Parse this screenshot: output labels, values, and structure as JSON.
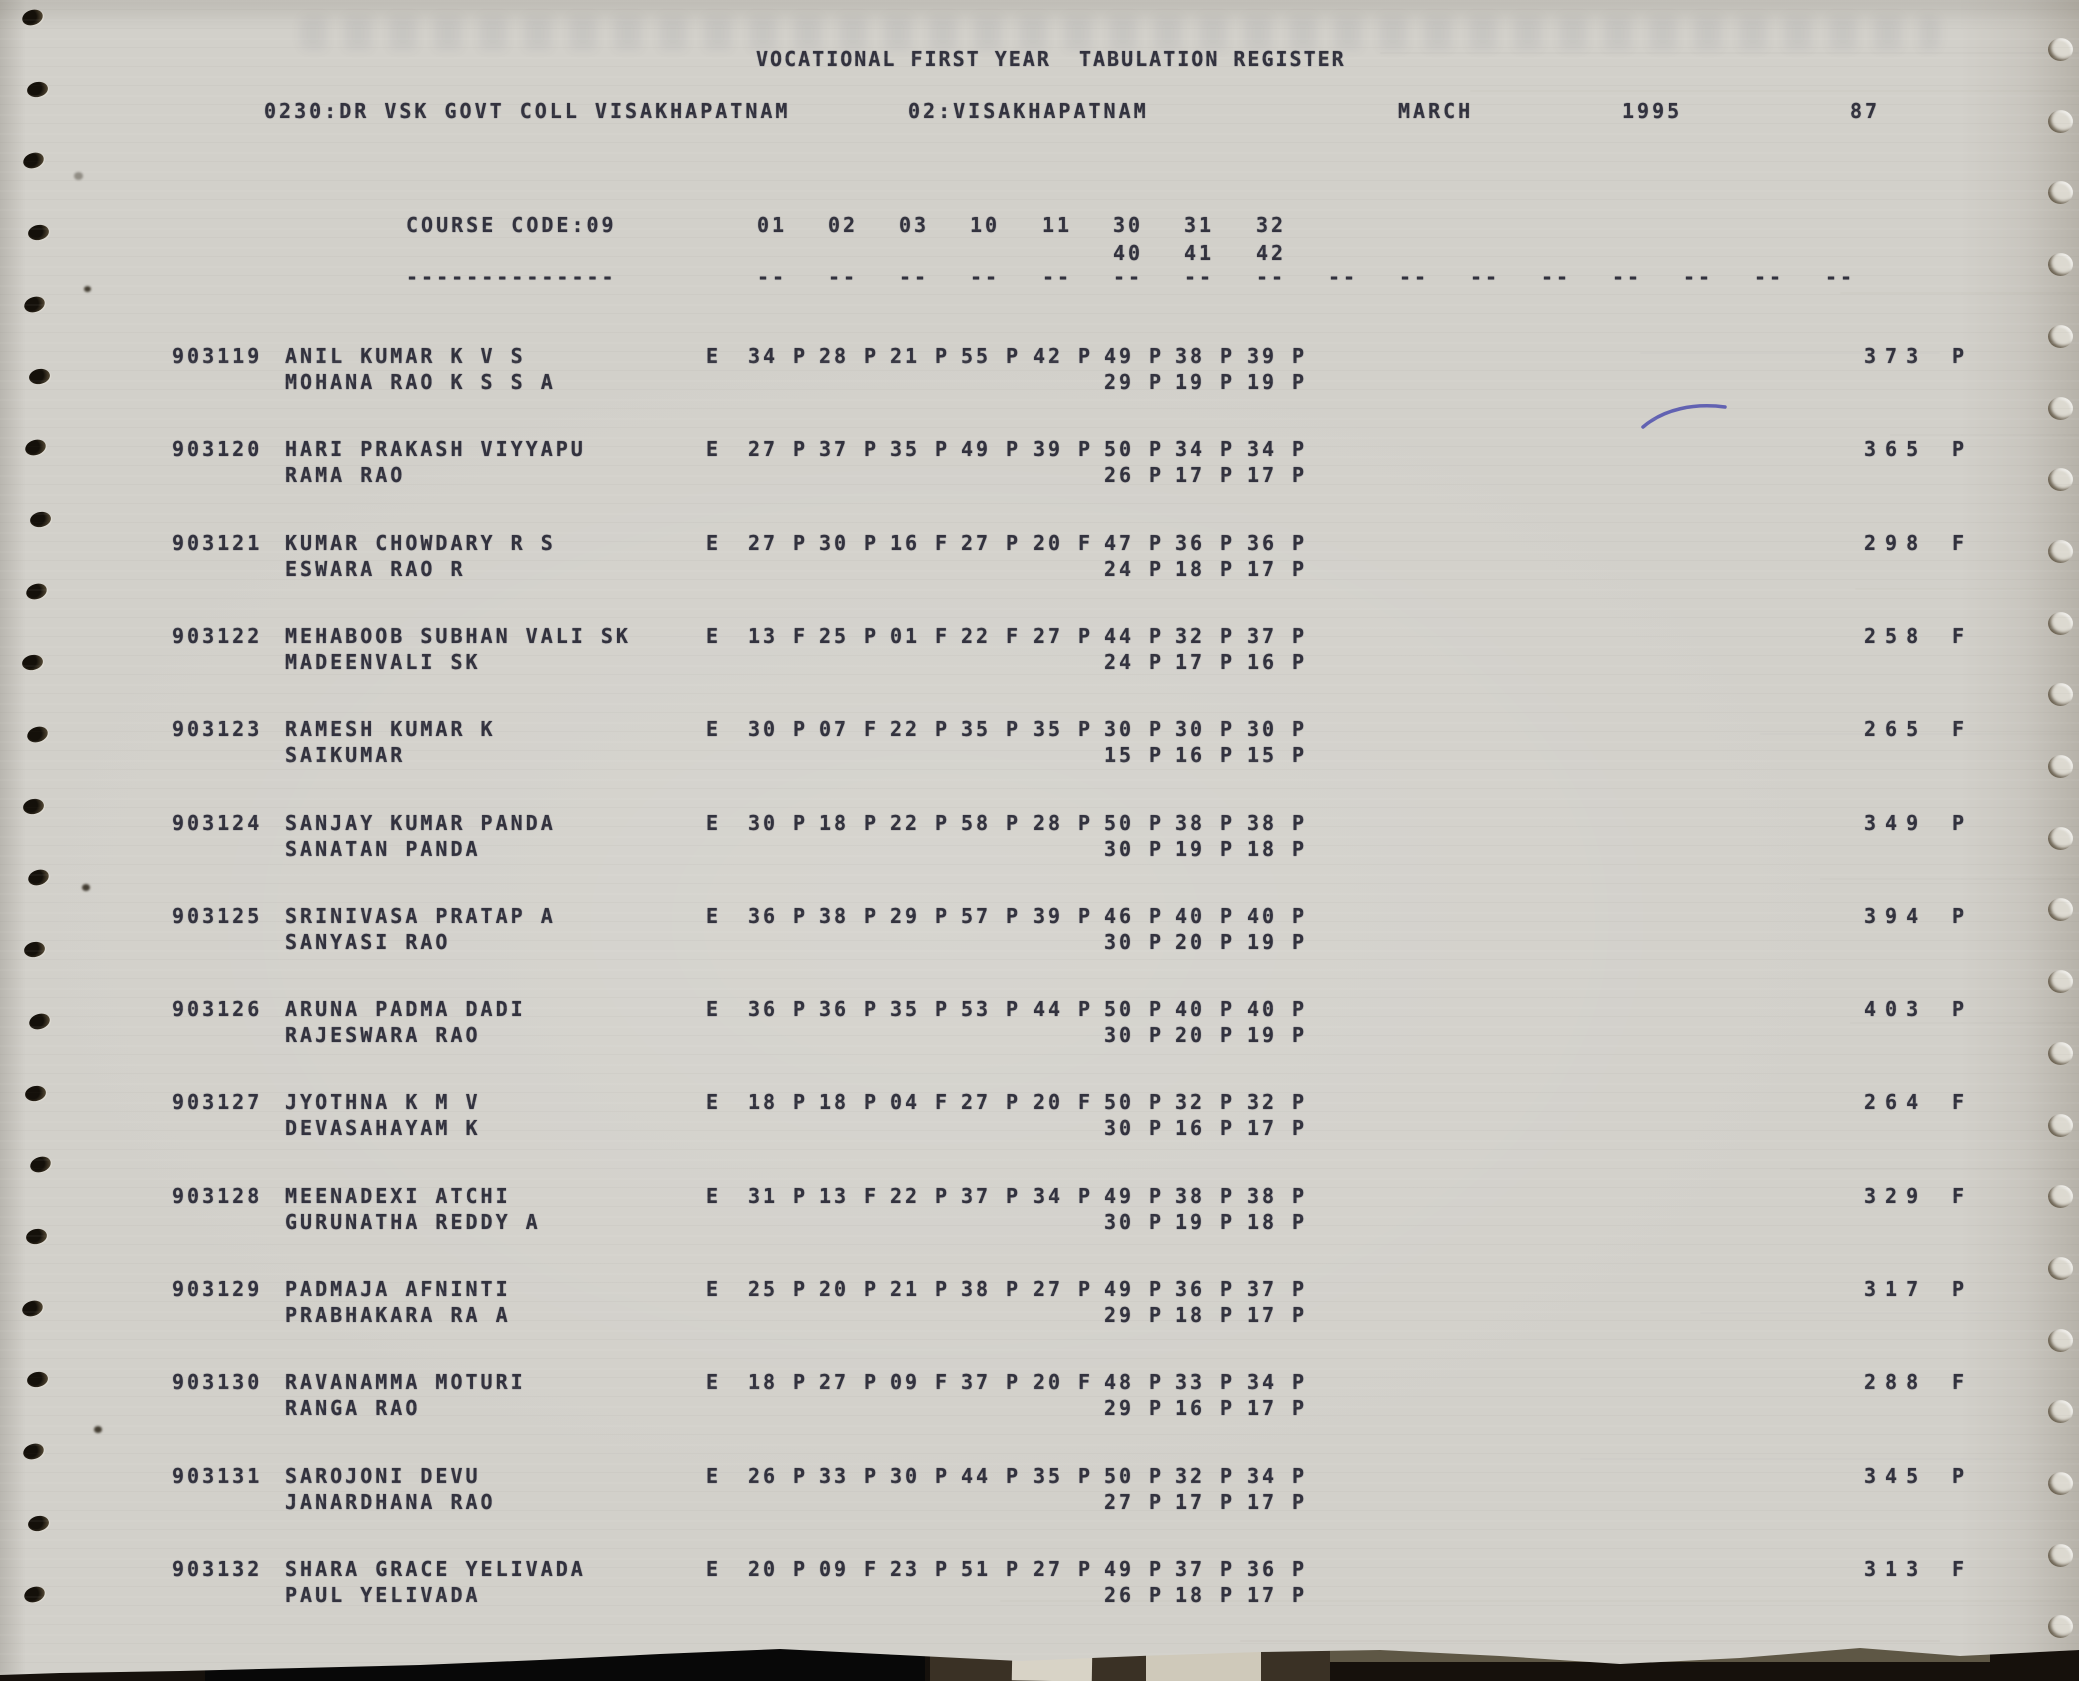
{
  "document": {
    "title": "VOCATIONAL FIRST YEAR  TABULATION REGISTER",
    "college": "0230:DR VSK GOVT COLL VISAKHAPATNAM",
    "district": "02:VISAKHAPATNAM",
    "month": "MARCH",
    "year": "1995",
    "page_number": "87",
    "course_code_label": "COURSE CODE:09",
    "course_code_underline": "--------------",
    "subject_columns_line1": [
      "01",
      "02",
      "03",
      "10",
      "11",
      "30",
      "31",
      "32"
    ],
    "subject_columns_line2": [
      "40",
      "41",
      "42"
    ],
    "column_dash": "--",
    "dash_column_count": 16
  },
  "colors": {
    "paper": "#d2d0ca",
    "ink": "#32323e",
    "pen_mark": "#4f4fae",
    "desk": "#16110c"
  },
  "students": [
    {
      "reg_no": "903119",
      "name": "ANIL KUMAR K V S",
      "father_name": "MOHANA RAO K S S A",
      "medium": "E",
      "marks_line1": [
        [
          "34",
          "P"
        ],
        [
          "28",
          "P"
        ],
        [
          "21",
          "P"
        ],
        [
          "55",
          "P"
        ],
        [
          "42",
          "P"
        ],
        [
          "49",
          "P"
        ],
        [
          "38",
          "P"
        ],
        [
          "39",
          "P"
        ]
      ],
      "marks_line2": [
        [
          "29",
          "P"
        ],
        [
          "19",
          "P"
        ],
        [
          "19",
          "P"
        ]
      ],
      "total": "373",
      "result": "P"
    },
    {
      "reg_no": "903120",
      "name": "HARI PRAKASH VIYYAPU",
      "father_name": "RAMA RAO",
      "medium": "E",
      "marks_line1": [
        [
          "27",
          "P"
        ],
        [
          "37",
          "P"
        ],
        [
          "35",
          "P"
        ],
        [
          "49",
          "P"
        ],
        [
          "39",
          "P"
        ],
        [
          "50",
          "P"
        ],
        [
          "34",
          "P"
        ],
        [
          "34",
          "P"
        ]
      ],
      "marks_line2": [
        [
          "26",
          "P"
        ],
        [
          "17",
          "P"
        ],
        [
          "17",
          "P"
        ]
      ],
      "total": "365",
      "result": "P"
    },
    {
      "reg_no": "903121",
      "name": "KUMAR CHOWDARY R S",
      "father_name": "ESWARA RAO R",
      "medium": "E",
      "marks_line1": [
        [
          "27",
          "P"
        ],
        [
          "30",
          "P"
        ],
        [
          "16",
          "F"
        ],
        [
          "27",
          "P"
        ],
        [
          "20",
          "F"
        ],
        [
          "47",
          "P"
        ],
        [
          "36",
          "P"
        ],
        [
          "36",
          "P"
        ]
      ],
      "marks_line2": [
        [
          "24",
          "P"
        ],
        [
          "18",
          "P"
        ],
        [
          "17",
          "P"
        ]
      ],
      "total": "298",
      "result": "F"
    },
    {
      "reg_no": "903122",
      "name": "MEHABOOB SUBHAN VALI SK",
      "father_name": "MADEENVALI SK",
      "medium": "E",
      "marks_line1": [
        [
          "13",
          "F"
        ],
        [
          "25",
          "P"
        ],
        [
          "01",
          "F"
        ],
        [
          "22",
          "F"
        ],
        [
          "27",
          "P"
        ],
        [
          "44",
          "P"
        ],
        [
          "32",
          "P"
        ],
        [
          "37",
          "P"
        ]
      ],
      "marks_line2": [
        [
          "24",
          "P"
        ],
        [
          "17",
          "P"
        ],
        [
          "16",
          "P"
        ]
      ],
      "total": "258",
      "result": "F"
    },
    {
      "reg_no": "903123",
      "name": "RAMESH KUMAR K",
      "father_name": "SAIKUMAR",
      "medium": "E",
      "marks_line1": [
        [
          "30",
          "P"
        ],
        [
          "07",
          "F"
        ],
        [
          "22",
          "P"
        ],
        [
          "35",
          "P"
        ],
        [
          "35",
          "P"
        ],
        [
          "30",
          "P"
        ],
        [
          "30",
          "P"
        ],
        [
          "30",
          "P"
        ]
      ],
      "marks_line2": [
        [
          "15",
          "P"
        ],
        [
          "16",
          "P"
        ],
        [
          "15",
          "P"
        ]
      ],
      "total": "265",
      "result": "F"
    },
    {
      "reg_no": "903124",
      "name": "SANJAY KUMAR PANDA",
      "father_name": "SANATAN PANDA",
      "medium": "E",
      "marks_line1": [
        [
          "30",
          "P"
        ],
        [
          "18",
          "P"
        ],
        [
          "22",
          "P"
        ],
        [
          "58",
          "P"
        ],
        [
          "28",
          "P"
        ],
        [
          "50",
          "P"
        ],
        [
          "38",
          "P"
        ],
        [
          "38",
          "P"
        ]
      ],
      "marks_line2": [
        [
          "30",
          "P"
        ],
        [
          "19",
          "P"
        ],
        [
          "18",
          "P"
        ]
      ],
      "total": "349",
      "result": "P"
    },
    {
      "reg_no": "903125",
      "name": "SRINIVASA PRATAP A",
      "father_name": "SANYASI RAO",
      "medium": "E",
      "marks_line1": [
        [
          "36",
          "P"
        ],
        [
          "38",
          "P"
        ],
        [
          "29",
          "P"
        ],
        [
          "57",
          "P"
        ],
        [
          "39",
          "P"
        ],
        [
          "46",
          "P"
        ],
        [
          "40",
          "P"
        ],
        [
          "40",
          "P"
        ]
      ],
      "marks_line2": [
        [
          "30",
          "P"
        ],
        [
          "20",
          "P"
        ],
        [
          "19",
          "P"
        ]
      ],
      "total": "394",
      "result": "P"
    },
    {
      "reg_no": "903126",
      "name": "ARUNA PADMA DADI",
      "father_name": "RAJESWARA RAO",
      "medium": "E",
      "marks_line1": [
        [
          "36",
          "P"
        ],
        [
          "36",
          "P"
        ],
        [
          "35",
          "P"
        ],
        [
          "53",
          "P"
        ],
        [
          "44",
          "P"
        ],
        [
          "50",
          "P"
        ],
        [
          "40",
          "P"
        ],
        [
          "40",
          "P"
        ]
      ],
      "marks_line2": [
        [
          "30",
          "P"
        ],
        [
          "20",
          "P"
        ],
        [
          "19",
          "P"
        ]
      ],
      "total": "403",
      "result": "P"
    },
    {
      "reg_no": "903127",
      "name": "JYOTHNA K M V",
      "father_name": "DEVASAHAYAM K",
      "medium": "E",
      "marks_line1": [
        [
          "18",
          "P"
        ],
        [
          "18",
          "P"
        ],
        [
          "04",
          "F"
        ],
        [
          "27",
          "P"
        ],
        [
          "20",
          "F"
        ],
        [
          "50",
          "P"
        ],
        [
          "32",
          "P"
        ],
        [
          "32",
          "P"
        ]
      ],
      "marks_line2": [
        [
          "30",
          "P"
        ],
        [
          "16",
          "P"
        ],
        [
          "17",
          "P"
        ]
      ],
      "total": "264",
      "result": "F"
    },
    {
      "reg_no": "903128",
      "name": "MEENADEXI ATCHI",
      "father_name": "GURUNATHA REDDY A",
      "medium": "E",
      "marks_line1": [
        [
          "31",
          "P"
        ],
        [
          "13",
          "F"
        ],
        [
          "22",
          "P"
        ],
        [
          "37",
          "P"
        ],
        [
          "34",
          "P"
        ],
        [
          "49",
          "P"
        ],
        [
          "38",
          "P"
        ],
        [
          "38",
          "P"
        ]
      ],
      "marks_line2": [
        [
          "30",
          "P"
        ],
        [
          "19",
          "P"
        ],
        [
          "18",
          "P"
        ]
      ],
      "total": "329",
      "result": "F"
    },
    {
      "reg_no": "903129",
      "name": "PADMAJA AFNINTI",
      "father_name": "PRABHAKARA RA A",
      "medium": "E",
      "marks_line1": [
        [
          "25",
          "P"
        ],
        [
          "20",
          "P"
        ],
        [
          "21",
          "P"
        ],
        [
          "38",
          "P"
        ],
        [
          "27",
          "P"
        ],
        [
          "49",
          "P"
        ],
        [
          "36",
          "P"
        ],
        [
          "37",
          "P"
        ]
      ],
      "marks_line2": [
        [
          "29",
          "P"
        ],
        [
          "18",
          "P"
        ],
        [
          "17",
          "P"
        ]
      ],
      "total": "317",
      "result": "P"
    },
    {
      "reg_no": "903130",
      "name": "RAVANAMMA MOTURI",
      "father_name": "RANGA RAO",
      "medium": "E",
      "marks_line1": [
        [
          "18",
          "P"
        ],
        [
          "27",
          "P"
        ],
        [
          "09",
          "F"
        ],
        [
          "37",
          "P"
        ],
        [
          "20",
          "F"
        ],
        [
          "48",
          "P"
        ],
        [
          "33",
          "P"
        ],
        [
          "34",
          "P"
        ]
      ],
      "marks_line2": [
        [
          "29",
          "P"
        ],
        [
          "16",
          "P"
        ],
        [
          "17",
          "P"
        ]
      ],
      "total": "288",
      "result": "F"
    },
    {
      "reg_no": "903131",
      "name": "SAROJONI DEVU",
      "father_name": "JANARDHANA RAO",
      "medium": "E",
      "marks_line1": [
        [
          "26",
          "P"
        ],
        [
          "33",
          "P"
        ],
        [
          "30",
          "P"
        ],
        [
          "44",
          "P"
        ],
        [
          "35",
          "P"
        ],
        [
          "50",
          "P"
        ],
        [
          "32",
          "P"
        ],
        [
          "34",
          "P"
        ]
      ],
      "marks_line2": [
        [
          "27",
          "P"
        ],
        [
          "17",
          "P"
        ],
        [
          "17",
          "P"
        ]
      ],
      "total": "345",
      "result": "P"
    },
    {
      "reg_no": "903132",
      "name": "SHARA GRACE YELIVADA",
      "father_name": "PAUL YELIVADA",
      "medium": "E",
      "marks_line1": [
        [
          "20",
          "P"
        ],
        [
          "09",
          "F"
        ],
        [
          "23",
          "P"
        ],
        [
          "51",
          "P"
        ],
        [
          "27",
          "P"
        ],
        [
          "49",
          "P"
        ],
        [
          "37",
          "P"
        ],
        [
          "36",
          "P"
        ]
      ],
      "marks_line2": [
        [
          "26",
          "P"
        ],
        [
          "18",
          "P"
        ],
        [
          "17",
          "P"
        ]
      ],
      "total": "313",
      "result": "F"
    }
  ]
}
